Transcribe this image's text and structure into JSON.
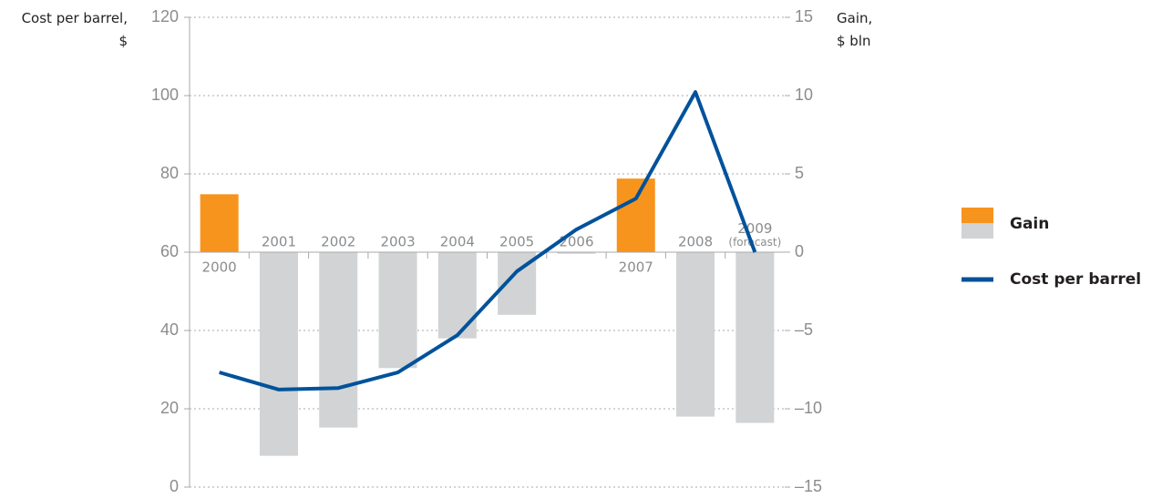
{
  "chart_data": {
    "type": "bar_line",
    "y_label": [
      "Cost per barrel,",
      "$"
    ],
    "y2_label": [
      "Gain,",
      "$ bln"
    ],
    "categories": [
      "2000",
      "2001",
      "2002",
      "2003",
      "2004",
      "2005",
      "2006",
      "2007",
      "2008",
      "2009 (forecast)"
    ],
    "series": [
      {
        "name": "Gain",
        "type": "bar",
        "axis": "y2",
        "color": "#f7941d",
        "negative_color": "#d1d3d4",
        "values": [
          3.7,
          -13.0,
          -11.2,
          -7.4,
          -5.5,
          -4.0,
          -0.1,
          4.7,
          -10.5,
          -10.9
        ]
      },
      {
        "name": "Cost per barrel",
        "type": "line",
        "axis": "y",
        "color": "#00529b",
        "values": [
          29.3,
          24.9,
          25.3,
          29.3,
          38.8,
          55.1,
          65.8,
          73.7,
          100.9,
          60
        ]
      }
    ],
    "ylim": [
      0,
      120
    ],
    "yticks": [
      0,
      20,
      40,
      60,
      80,
      100,
      120
    ],
    "y2lim": [
      -15,
      15
    ],
    "y2ticks": [
      {
        "value": -15,
        "label": "–15"
      },
      {
        "value": -10,
        "label": "–10"
      },
      {
        "value": -5,
        "label": "–5"
      },
      0,
      5,
      10,
      15
    ],
    "grid": true,
    "legend": "right"
  }
}
